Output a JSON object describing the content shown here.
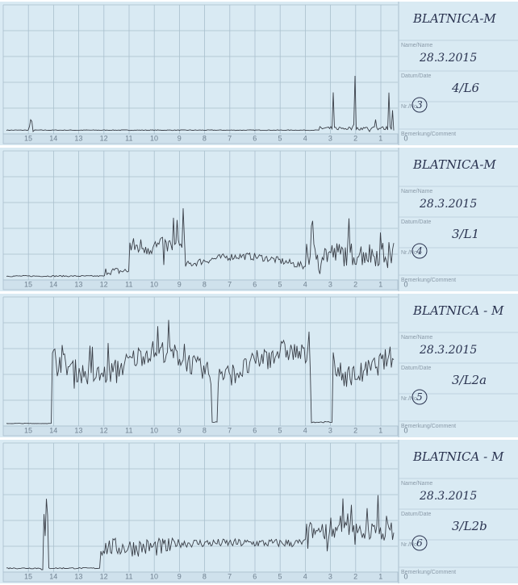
{
  "form_labels": {
    "name": "Name/Name",
    "date": "Datum/Date",
    "number": "Nr./No",
    "comment": "Bemerkung/Comment"
  },
  "axis_labels": [
    "15",
    "14",
    "13",
    "12",
    "11",
    "10",
    "9",
    "8",
    "7",
    "6",
    "5",
    "4",
    "3",
    "2",
    "1",
    "0"
  ],
  "panels": [
    {
      "name": "BLATNICA-M",
      "date": "28.3.2015",
      "code": "4/L6",
      "number": "3"
    },
    {
      "name": "BLATNICA-M",
      "date": "28.3.2015",
      "code": "3/L1",
      "number": "4"
    },
    {
      "name": "BLATNICA - M",
      "date": "28.3.2015",
      "code": "3/L2a",
      "number": "5"
    },
    {
      "name": "BLATNICA - M",
      "date": "28.3.2015",
      "code": "3/L2b",
      "number": "6"
    }
  ]
}
